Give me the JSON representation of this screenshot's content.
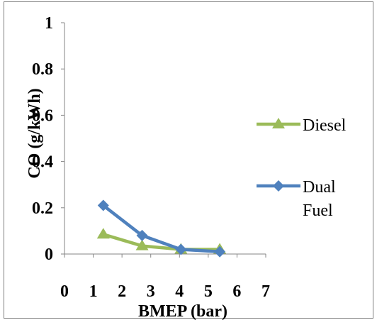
{
  "chart_data": {
    "type": "line",
    "title": "",
    "xlabel": "BMEP (bar)",
    "ylabel": "CO (g/kWh)",
    "xlim": [
      0,
      7
    ],
    "ylim": [
      0,
      1
    ],
    "x_ticks": [
      "0",
      "1",
      "2",
      "3",
      "4",
      "5",
      "6",
      "7"
    ],
    "y_ticks": [
      "0",
      "0.2",
      "0.4",
      "0.6",
      "0.8",
      "1"
    ],
    "grid": false,
    "legend_position": "right",
    "series": [
      {
        "name": "Diesel",
        "color": "#9bbb59",
        "marker": "triangle",
        "x": [
          1.35,
          2.7,
          4.05,
          5.4
        ],
        "y": [
          0.085,
          0.035,
          0.02,
          0.02
        ]
      },
      {
        "name": "Dual Fuel",
        "color": "#4f81bd",
        "marker": "diamond",
        "x": [
          1.35,
          2.7,
          4.05,
          5.4
        ],
        "y": [
          0.21,
          0.08,
          0.02,
          0.01
        ]
      }
    ]
  }
}
